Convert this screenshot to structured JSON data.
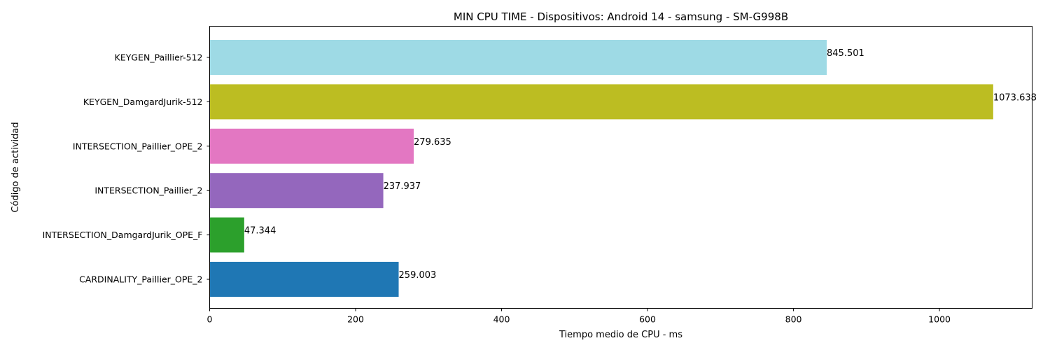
{
  "chart_data": {
    "type": "bar",
    "orientation": "horizontal",
    "title": "MIN CPU TIME - Dispositivos: Android 14 - samsung - SM-G998B",
    "xlabel": "Tiempo medio de CPU - ms",
    "ylabel": "Código de actividad",
    "xlim": [
      0,
      1127
    ],
    "xticks": [
      0,
      200,
      400,
      600,
      800,
      1000
    ],
    "grid": false,
    "categories": [
      "CARDINALITY_Paillier_OPE_2",
      "INTERSECTION_DamgardJurik_OPE_F",
      "INTERSECTION_Paillier_2",
      "INTERSECTION_Paillier_OPE_2",
      "KEYGEN_DamgardJurik-512",
      "KEYGEN_Paillier-512"
    ],
    "values": [
      259.003,
      47.344,
      237.937,
      279.635,
      1073.638,
      845.501
    ],
    "value_labels": [
      "259.003",
      "47.344",
      "237.937",
      "279.635",
      "1073.638",
      "845.501"
    ],
    "colors": [
      "#1f77b4",
      "#2ca02c",
      "#9467bd",
      "#e377c2",
      "#bcbd22",
      "#9edae5"
    ]
  }
}
